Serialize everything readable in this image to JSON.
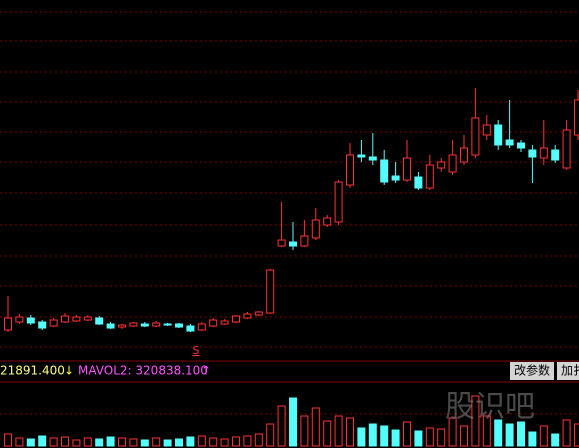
{
  "chart_data": [
    {
      "type": "candlestick",
      "open": [
        25,
        33,
        37,
        33,
        29,
        33,
        34,
        35,
        37,
        31,
        28,
        29,
        31,
        29,
        31,
        31,
        29,
        25,
        29,
        31,
        33,
        37,
        40,
        42,
        109,
        113,
        109,
        117,
        130,
        133,
        170,
        200,
        198,
        195,
        179,
        175,
        178,
        167,
        187,
        183,
        193,
        200,
        220,
        230,
        215,
        212,
        205,
        197,
        205,
        187,
        220
      ],
      "high": [
        59,
        41,
        40,
        35,
        37,
        42,
        40,
        40,
        39,
        33,
        31,
        33,
        33,
        34,
        32,
        32,
        31,
        33,
        37,
        36,
        40,
        43,
        44,
        86,
        153,
        133,
        135,
        147,
        140,
        175,
        212,
        215,
        222,
        205,
        193,
        215,
        183,
        200,
        197,
        215,
        220,
        267,
        240,
        235,
        255,
        215,
        210,
        235,
        210,
        235,
        265
      ],
      "low": [
        23,
        31,
        30,
        25,
        28,
        32,
        33,
        34,
        30,
        26,
        26,
        28,
        28,
        28,
        29,
        27,
        23,
        24,
        28,
        30,
        32,
        36,
        39,
        41,
        108,
        105,
        108,
        115,
        128,
        130,
        167,
        193,
        190,
        170,
        172,
        173,
        165,
        165,
        183,
        180,
        190,
        197,
        215,
        205,
        207,
        203,
        172,
        190,
        192,
        185,
        215
      ],
      "close": [
        37,
        38,
        32,
        27,
        35,
        39,
        38,
        38,
        31,
        27,
        30,
        32,
        29,
        32,
        30,
        28,
        24,
        31,
        35,
        34,
        39,
        41,
        43,
        85,
        115,
        109,
        119,
        135,
        137,
        173,
        200,
        198,
        195,
        173,
        175,
        197,
        167,
        190,
        193,
        200,
        207,
        237,
        230,
        210,
        210,
        207,
        198,
        207,
        195,
        225,
        255
      ],
      "ylim": [
        0,
        355
      ],
      "up_color": "#ff3232",
      "down_color": "#54fcfc"
    },
    {
      "type": "bar",
      "values": [
        12,
        8,
        7,
        10,
        8,
        9,
        6,
        8,
        7,
        9,
        8,
        7,
        6,
        8,
        6,
        7,
        9,
        10,
        8,
        7,
        9,
        10,
        12,
        22,
        40,
        48,
        30,
        38,
        25,
        30,
        28,
        18,
        22,
        20,
        16,
        24,
        15,
        18,
        17,
        28,
        20,
        50,
        30,
        26,
        22,
        24,
        14,
        20,
        12,
        26,
        22
      ],
      "ylim": [
        0,
        63
      ]
    }
  ],
  "signal_label": "S",
  "info": {
    "value": "21891.400",
    "arrow_down": "↓",
    "mavol": "MAVOL2: 320838.100",
    "arrow_up": "↑"
  },
  "buttons": [
    "改参数",
    "加扌"
  ],
  "watermark": "股识吧"
}
